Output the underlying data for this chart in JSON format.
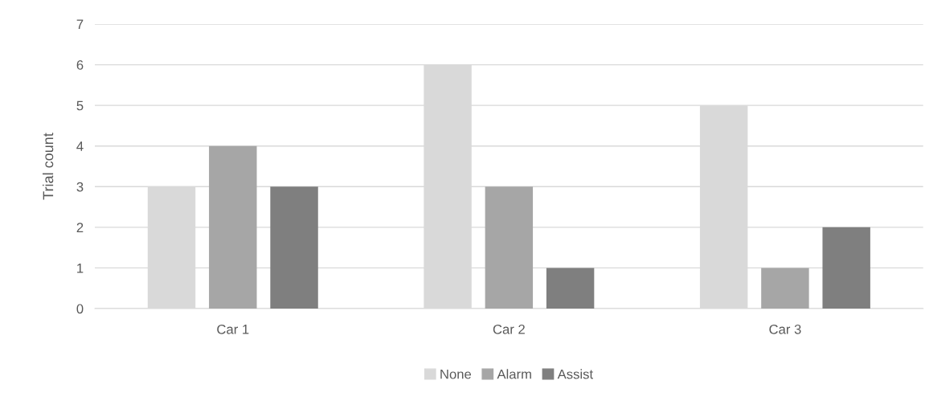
{
  "chart_data": {
    "type": "bar",
    "ylabel": "Trial count",
    "categories": [
      "Car 1",
      "Car 2",
      "Car 3"
    ],
    "series": [
      {
        "name": "None",
        "color": "#d9d9d9",
        "values": [
          3,
          6,
          5
        ]
      },
      {
        "name": "Alarm",
        "color": "#a6a6a6",
        "values": [
          4,
          3,
          1
        ]
      },
      {
        "name": "Assist",
        "color": "#7f7f7f",
        "values": [
          3,
          1,
          2
        ]
      }
    ],
    "ylim": [
      0,
      7
    ],
    "yticks": [
      0,
      1,
      2,
      3,
      4,
      5,
      6,
      7
    ],
    "grid": "y",
    "legend": "bottom"
  }
}
